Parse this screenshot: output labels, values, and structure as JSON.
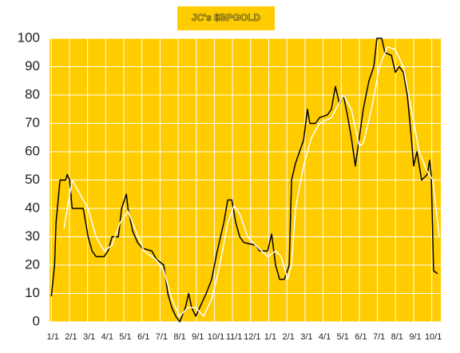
{
  "chart_data": {
    "type": "line",
    "title": "JC's $BPGOLD",
    "xlim": [
      -0.1,
      21.5
    ],
    "ylim": [
      0,
      100
    ],
    "yticks": [
      0,
      10,
      20,
      30,
      40,
      50,
      60,
      70,
      80,
      90,
      100
    ],
    "xticks": [
      {
        "value": 0,
        "label": "1/1"
      },
      {
        "value": 1,
        "label": "2/1"
      },
      {
        "value": 2,
        "label": "3/1"
      },
      {
        "value": 3,
        "label": "4/1"
      },
      {
        "value": 4,
        "label": "5/1"
      },
      {
        "value": 5,
        "label": "6/1"
      },
      {
        "value": 6,
        "label": "7/1"
      },
      {
        "value": 7,
        "label": "8/1"
      },
      {
        "value": 8,
        "label": "9/1"
      },
      {
        "value": 9,
        "label": "10/1"
      },
      {
        "value": 10,
        "label": "11/1"
      },
      {
        "value": 11,
        "label": "12/1"
      },
      {
        "value": 12,
        "label": "1/1"
      },
      {
        "value": 13,
        "label": "2/1"
      },
      {
        "value": 14,
        "label": "3/1"
      },
      {
        "value": 15,
        "label": "4/1"
      },
      {
        "value": 16,
        "label": "5/1"
      },
      {
        "value": 17,
        "label": "6/1"
      },
      {
        "value": 18,
        "label": "7/1"
      },
      {
        "value": 19,
        "label": "8/1"
      },
      {
        "value": 20,
        "label": "9/1"
      },
      {
        "value": 21,
        "label": "10/1"
      }
    ],
    "grid": true,
    "background": "#ffcc00",
    "series": [
      {
        "color": "#000000",
        "x": [
          0,
          0.18,
          0.26,
          0.48,
          0.79,
          0.88,
          1.01,
          1.15,
          1.76,
          2.03,
          2.25,
          2.47,
          2.91,
          3.13,
          3.35,
          3.7,
          3.88,
          4.14,
          4.23,
          4.49,
          4.76,
          5.02,
          5.55,
          5.81,
          6.21,
          6.43,
          6.65,
          6.87,
          7.09,
          7.4,
          7.58,
          7.75,
          7.97,
          8.19,
          8.55,
          8.85,
          9.16,
          9.52,
          9.74,
          9.96,
          10.18,
          10.4,
          10.62,
          11.28,
          11.5,
          11.94,
          12.16,
          12.38,
          12.6,
          12.86,
          13.13,
          13.26,
          13.48,
          13.7,
          13.92,
          14.14,
          14.27,
          14.58,
          14.8,
          15.24,
          15.46,
          15.68,
          15.9,
          16.12,
          16.34,
          16.56,
          16.78,
          17.0,
          17.22,
          17.53,
          17.8,
          17.97,
          18.24,
          18.41,
          18.77,
          18.99,
          19.21,
          19.43,
          19.65,
          19.87,
          20.0,
          20.18,
          20.44,
          20.75,
          20.88,
          20.97,
          21.1,
          21.32
        ],
        "values": [
          9,
          20,
          35,
          50,
          50,
          52,
          50,
          40,
          40,
          30,
          25,
          23,
          23,
          25,
          30,
          30,
          40,
          45,
          40,
          32,
          28,
          26,
          25,
          22,
          20,
          10,
          5,
          2,
          0,
          5,
          10,
          5,
          2,
          5,
          10,
          15,
          25,
          35,
          43,
          43,
          35,
          30,
          28,
          27,
          25,
          25,
          31,
          20,
          15,
          15,
          20,
          50,
          56,
          60,
          64,
          75,
          70,
          70,
          72,
          73,
          75,
          83,
          77,
          80,
          73,
          65,
          55,
          65,
          75,
          85,
          90,
          100,
          100,
          95,
          94,
          88,
          90,
          88,
          80,
          65,
          55,
          60,
          50,
          52,
          57,
          52,
          18,
          17
        ]
      },
      {
        "color": "#ffffff",
        "x": [
          0.7,
          1.15,
          1.59,
          2.03,
          2.47,
          2.91,
          3.35,
          3.79,
          4.23,
          4.67,
          5.11,
          5.77,
          6.21,
          6.65,
          7.09,
          7.53,
          7.97,
          8.41,
          8.85,
          9.3,
          9.74,
          10.09,
          10.4,
          10.84,
          11.28,
          11.94,
          12.38,
          12.69,
          13.04,
          13.26,
          13.48,
          13.92,
          14.36,
          14.8,
          15.46,
          16.12,
          16.56,
          17.0,
          17.22,
          17.67,
          18.11,
          18.55,
          18.99,
          19.43,
          19.87,
          20.31,
          20.75,
          21.06,
          21.41
        ],
        "values": [
          33,
          50,
          45,
          40,
          30,
          25,
          27,
          35,
          39,
          32,
          25,
          22,
          18,
          8,
          2,
          5,
          5,
          2,
          8,
          20,
          35,
          41,
          38,
          30,
          27,
          23,
          25,
          23,
          15,
          20,
          40,
          55,
          65,
          70,
          72,
          80,
          75,
          62,
          63,
          75,
          90,
          97,
          96,
          90,
          75,
          60,
          53,
          50,
          30
        ]
      }
    ]
  }
}
